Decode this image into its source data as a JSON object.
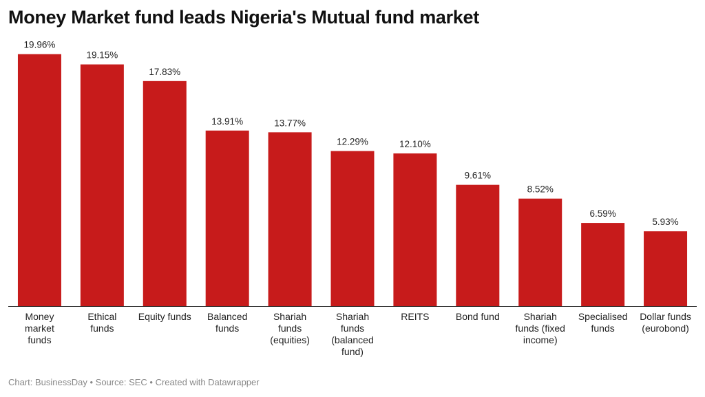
{
  "chart_data": {
    "type": "bar",
    "title": "Money Market fund leads Nigeria's Mutual fund market",
    "categories": [
      [
        "Money",
        "market",
        "funds"
      ],
      [
        "Ethical",
        "funds"
      ],
      [
        "Equity funds"
      ],
      [
        "Balanced",
        "funds"
      ],
      [
        "Shariah",
        "funds",
        "(equities)"
      ],
      [
        "Shariah",
        "funds",
        "(balanced",
        "fund)"
      ],
      [
        "REITS"
      ],
      [
        "Bond fund"
      ],
      [
        "Shariah",
        "funds (fixed",
        "income)"
      ],
      [
        "Specialised",
        "funds"
      ],
      [
        "Dollar funds",
        "(eurobond)"
      ]
    ],
    "values": [
      19.96,
      19.15,
      17.83,
      13.91,
      13.77,
      12.29,
      12.1,
      9.61,
      8.52,
      6.59,
      5.93
    ],
    "value_labels": [
      "19.96%",
      "19.15%",
      "17.83%",
      "13.91%",
      "13.77%",
      "12.29%",
      "12.10%",
      "9.61%",
      "8.52%",
      "6.59%",
      "5.93%"
    ],
    "ylim": [
      0,
      20
    ],
    "bar_color": "#c71b1b",
    "grid": false,
    "xlabel": "",
    "ylabel": ""
  },
  "footer": "Chart: BusinessDay • Source: SEC • Created with Datawrapper"
}
